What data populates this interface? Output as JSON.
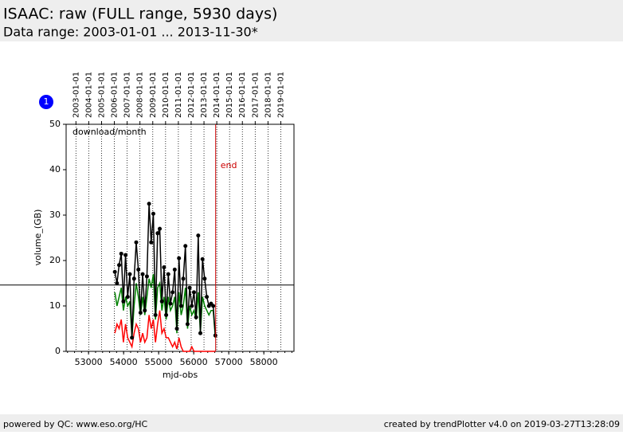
{
  "header": {
    "title": "ISAAC: raw (FULL range, 5930 days)",
    "subtitle": "Data range: 2003-01-01 ... 2013-11-30*"
  },
  "footer": {
    "left": "powered by QC: www.eso.org/HC",
    "right": "created by trendPlotter v4.0 on 2019-03-27T13:28:09"
  },
  "badge": "1",
  "chart_data": {
    "type": "line",
    "ylabel": "volume_(GB)",
    "xlabel": "mjd-obs",
    "annotation": "download/month",
    "end_label": "end",
    "xlim": [
      52360,
      58860
    ],
    "ylim": [
      0,
      50
    ],
    "xticks": [
      53000,
      54000,
      55000,
      56000,
      57000,
      58000
    ],
    "yticks": [
      0,
      10,
      20,
      30,
      40,
      50
    ],
    "x2ticks": [
      {
        "value": 52640,
        "label": "2003-01-01"
      },
      {
        "value": 53005,
        "label": "2004-01-01"
      },
      {
        "value": 53371,
        "label": "2005-01-01"
      },
      {
        "value": 53736,
        "label": "2006-01-01"
      },
      {
        "value": 54101,
        "label": "2007-01-01"
      },
      {
        "value": 54466,
        "label": "2008-01-01"
      },
      {
        "value": 54832,
        "label": "2009-01-01"
      },
      {
        "value": 55197,
        "label": "2010-01-01"
      },
      {
        "value": 55562,
        "label": "2011-01-01"
      },
      {
        "value": 55927,
        "label": "2012-01-01"
      },
      {
        "value": 56293,
        "label": "2013-01-01"
      },
      {
        "value": 56658,
        "label": "2014-01-01"
      },
      {
        "value": 57023,
        "label": "2015-01-01"
      },
      {
        "value": 57388,
        "label": "2016-01-01"
      },
      {
        "value": 57754,
        "label": "2017-01-01"
      },
      {
        "value": 58119,
        "label": "2018-01-01"
      },
      {
        "value": 58484,
        "label": "2019-01-01"
      }
    ],
    "hline": 14.6,
    "end_x": 56626,
    "x": [
      53750,
      53811,
      53872,
      53933,
      53994,
      54055,
      54116,
      54177,
      54238,
      54299,
      54360,
      54421,
      54482,
      54543,
      54604,
      54665,
      54726,
      54787,
      54848,
      54909,
      54970,
      55031,
      55092,
      55153,
      55214,
      55275,
      55336,
      55397,
      55458,
      55519,
      55580,
      55641,
      55702,
      55763,
      55824,
      55885,
      55946,
      56007,
      56068,
      56129,
      56190,
      56251,
      56312,
      56373,
      56434,
      56495,
      56556,
      56617
    ],
    "series": [
      {
        "color": "#008000",
        "markers": false,
        "values": [
          13,
          10,
          12,
          14,
          9,
          12,
          10,
          11,
          3,
          10,
          15,
          12,
          8,
          12,
          8,
          12,
          16,
          14,
          17,
          7,
          14,
          15,
          9,
          12,
          7,
          12,
          9,
          10,
          12,
          4,
          13,
          8,
          10,
          14,
          5,
          10,
          8,
          9,
          7,
          13,
          4,
          12,
          10,
          9,
          8,
          9,
          9,
          3
        ]
      },
      {
        "color": "#ff0000",
        "markers": false,
        "values": [
          4,
          6,
          5,
          7,
          2,
          6,
          3,
          2,
          1,
          4,
          6,
          5,
          2,
          4,
          2,
          3,
          8,
          5,
          7,
          2,
          6,
          9,
          4,
          5,
          3,
          3,
          2,
          1,
          2,
          0.5,
          3,
          1,
          0,
          0,
          0,
          0,
          1,
          0,
          0,
          0,
          0,
          0,
          0,
          0,
          0,
          0,
          0,
          0
        ]
      },
      {
        "color": "#000000",
        "markers": true,
        "values": [
          17.5,
          15,
          19,
          21.5,
          11,
          21.2,
          12,
          17,
          3,
          16,
          24,
          18,
          8.5,
          17,
          9,
          16.5,
          32.5,
          24,
          30.3,
          8,
          26,
          27,
          11,
          18.5,
          8,
          17,
          10.5,
          13,
          18,
          5,
          20.5,
          10,
          16,
          23.2,
          6,
          14,
          10,
          13,
          7.5,
          25.5,
          4,
          20.3,
          16,
          12,
          10,
          10.5,
          10,
          3.5
        ]
      }
    ]
  }
}
